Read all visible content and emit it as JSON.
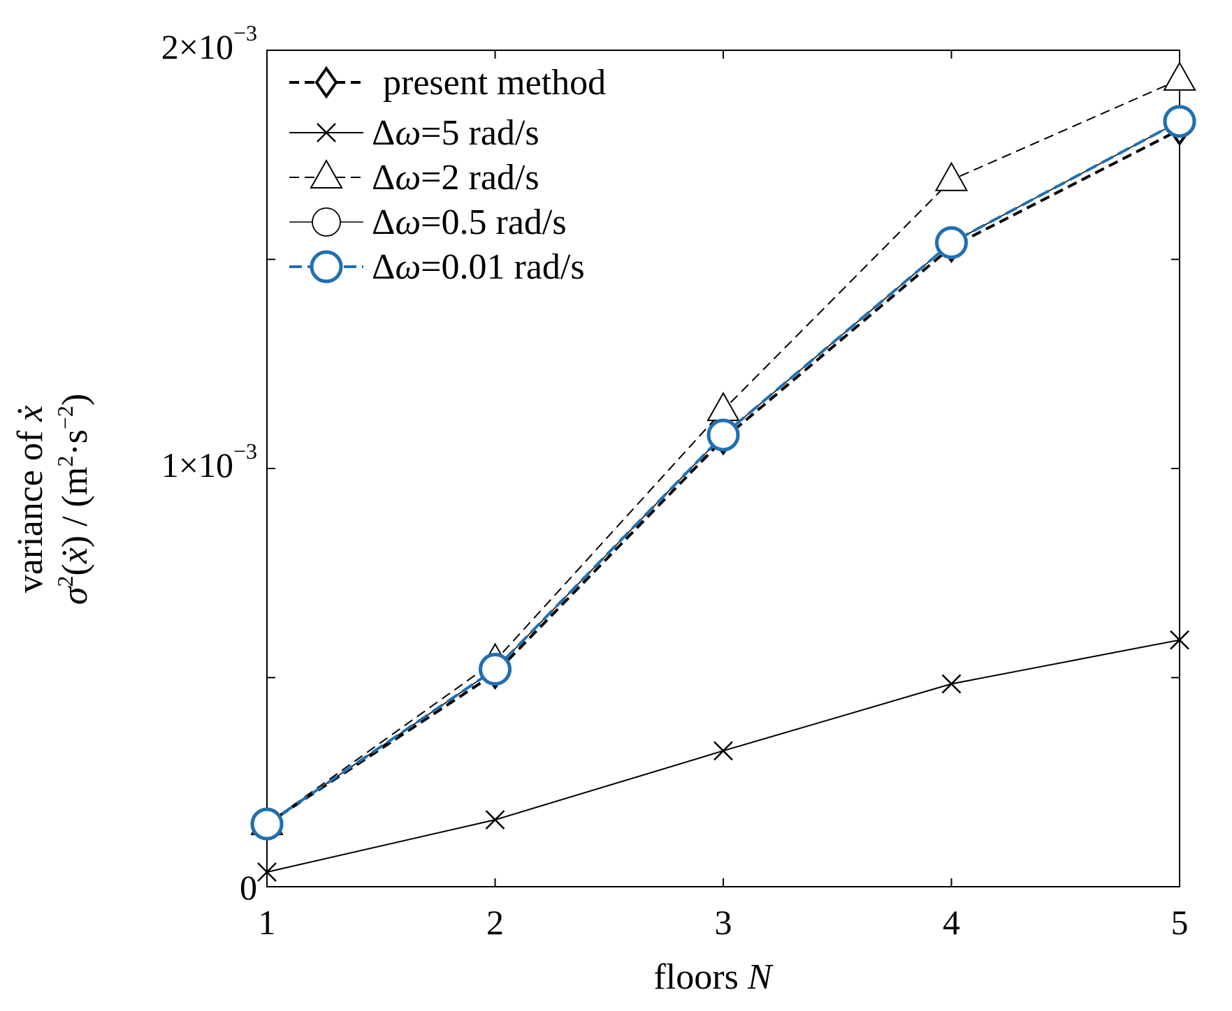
{
  "chart_data": {
    "type": "line",
    "xlabel": {
      "prefix": "floors ",
      "var": "N"
    },
    "ylabel": {
      "line1": {
        "text": "variance of ",
        "var": "ẋ"
      },
      "line2": {
        "sigma": "σ",
        "sq": "2",
        "open": "(",
        "var": "ẋ",
        "rest": ") / (m",
        "sq2": "2",
        "dot": "·",
        "s": "s",
        "exp": "−2",
        "close": ")"
      }
    },
    "xlim": [
      1,
      5
    ],
    "ylim": [
      0,
      0.002
    ],
    "x": [
      1,
      2,
      3,
      4,
      5
    ],
    "xticks": [
      {
        "v": 1,
        "label": "1"
      },
      {
        "v": 2,
        "label": "2"
      },
      {
        "v": 3,
        "label": "3"
      },
      {
        "v": 4,
        "label": "4"
      },
      {
        "v": 5,
        "label": "5"
      }
    ],
    "yticks": [
      {
        "v": 0,
        "mant": "0",
        "exp": ""
      },
      {
        "v": 0.0005,
        "mant": "",
        "exp": ""
      },
      {
        "v": 0.001,
        "mant": "1×10",
        "exp": "−3"
      },
      {
        "v": 0.0015,
        "mant": "",
        "exp": ""
      },
      {
        "v": 0.002,
        "mant": "2×10",
        "exp": "−3"
      }
    ],
    "grid": false,
    "legend_position": "top-left",
    "series": [
      {
        "name": "present method",
        "marker": "diamond",
        "dash": "dashed",
        "color": "#000000",
        "values": [
          0.00015,
          0.00051,
          0.00107,
          0.00153,
          0.00181
        ]
      },
      {
        "name": "Δω=5 rad/s",
        "label_prefix": "Δ",
        "label_var": "ω",
        "label_rest": "=5 rad/s",
        "marker": "x",
        "dash": "solid",
        "color": "#000000",
        "values": [
          3.5e-05,
          0.00016,
          0.000325,
          0.000485,
          0.00059
        ]
      },
      {
        "name": "Δω=2 rad/s",
        "label_prefix": "Δ",
        "label_var": "ω",
        "label_rest": "=2 rad/s",
        "marker": "triangle",
        "dash": "dashed",
        "color": "#000000",
        "values": [
          0.00015,
          0.00054,
          0.00114,
          0.00169,
          0.00193
        ]
      },
      {
        "name": "Δω=0.5 rad/s",
        "label_prefix": "Δ",
        "label_var": "ω",
        "label_rest": "=0.5 rad/s",
        "marker": "circle",
        "dash": "solid",
        "color": "#000000",
        "values": [
          0.00015,
          0.00052,
          0.00108,
          0.00154,
          0.00183
        ]
      },
      {
        "name": "Δω=0.01 rad/s",
        "label_prefix": "Δ",
        "label_var": "ω",
        "label_rest": "=0.01 rad/s",
        "marker": "circle-bold",
        "dash": "dashed",
        "color": "#1f6fb2",
        "values": [
          0.00015,
          0.00052,
          0.00108,
          0.00154,
          0.00183
        ]
      }
    ]
  }
}
